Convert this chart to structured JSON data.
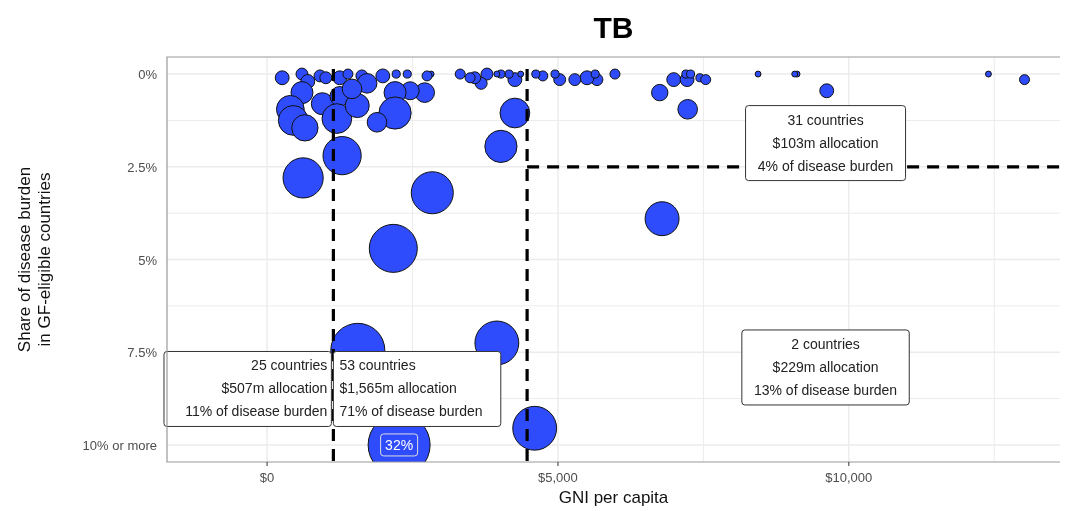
{
  "chart_data": {
    "type": "bubble",
    "title": "TB",
    "xlabel": "GNI per capita",
    "ylabel": "Share of disease burden\nin GF-eligible countries",
    "color": "#2e4cfb",
    "x": [
      2270,
      4600,
      1560,
      3950,
      2170,
      2840,
      620,
      1290,
      4020,
      4260,
      6790,
      7230,
      6750,
      9620,
      13020,
      12400,
      9110,
      9070,
      8440,
      6990,
      7220,
      7200,
      7280,
      7440,
      7540,
      5980,
      5670,
      5500,
      5290,
      5030,
      4740,
      4950,
      5640,
      4620,
      4260,
      4360,
      4160,
      4020,
      3950,
      3780,
      3680,
      3570,
      3490,
      3320,
      2820,
      2750,
      2710,
      2460,
      2200,
      1990,
      2220,
      2410,
      2200,
      1890,
      260,
      600,
      700,
      910,
      1010,
      1250,
      1390,
      1630,
      1720,
      600,
      950,
      1250,
      400,
      450,
      650,
      1200,
      1550,
      1460
    ],
    "values": [
      10,
      9.55,
      7.45,
      7.25,
      4.7,
      3.2,
      2.8,
      2.2,
      1.95,
      1.05,
      3.9,
      0.95,
      0.5,
      0.45,
      0.15,
      0,
      0,
      0,
      0,
      0.15,
      0.15,
      0,
      0,
      0.1,
      0.15,
      0,
      0.15,
      0.1,
      0.15,
      0.15,
      0.05,
      0,
      0,
      0,
      0.15,
      0,
      0,
      0,
      0,
      0,
      0.25,
      0.1,
      0.1,
      0,
      0,
      0.05,
      0.5,
      0.45,
      0.5,
      0.05,
      0,
      0,
      1.05,
      1.3,
      0.1,
      0,
      0.2,
      0.05,
      0.1,
      0.1,
      0,
      0.05,
      0.25,
      0.5,
      0.8,
      0.6,
      0.95,
      1.25,
      1.45,
      1.2,
      0.85,
      0.4
    ],
    "sizes": [
      1,
      0.5,
      0.76,
      0.5,
      0.6,
      0.46,
      0.42,
      0.38,
      0.27,
      0.23,
      0.3,
      0.1,
      0.07,
      0.05,
      0.026,
      0.009,
      0.009,
      0.009,
      0.009,
      0.05,
      0.05,
      0.017,
      0.017,
      0.017,
      0.026,
      0.026,
      0.037,
      0.05,
      0.037,
      0.037,
      0.026,
      0.017,
      0.017,
      0.017,
      0.05,
      0.009,
      0.017,
      0.017,
      0.009,
      0.037,
      0.037,
      0.037,
      0.026,
      0.026,
      0.009,
      0.026,
      0.1,
      0.084,
      0.126,
      0.05,
      0.017,
      0.017,
      0.27,
      0.1,
      0.05,
      0.037,
      0.05,
      0.037,
      0.037,
      0.05,
      0.026,
      0.037,
      0.1,
      0.126,
      0.126,
      0.1,
      0.2,
      0.23,
      0.18,
      0.23,
      0.15,
      0.1
    ],
    "xlim": [
      -1720,
      13630
    ],
    "ylim": [
      10.46,
      -0.46
    ],
    "xticks": [
      {
        "value": 0,
        "label": "$0"
      },
      {
        "value": 2500,
        "label": null
      },
      {
        "value": 5000,
        "label": "$5,000"
      },
      {
        "value": 7500,
        "label": null
      },
      {
        "value": 10000,
        "label": "$10,000"
      },
      {
        "value": 12500,
        "label": null
      }
    ],
    "yticks": [
      {
        "value": 0,
        "label": "0%"
      },
      {
        "value": 1.25,
        "label": null
      },
      {
        "value": 2.5,
        "label": "2.5%"
      },
      {
        "value": 3.75,
        "label": null
      },
      {
        "value": 5,
        "label": "5%"
      },
      {
        "value": 6.25,
        "label": null
      },
      {
        "value": 7.5,
        "label": "7.5%"
      },
      {
        "value": 8.75,
        "label": null
      },
      {
        "value": 10,
        "label": "10% or more"
      }
    ],
    "grid": true,
    "ref_lines": [
      {
        "axis": "x",
        "value": 1140,
        "line_style": "dashed"
      },
      {
        "axis": "x",
        "value": 4470,
        "line_style": "dashed"
      },
      {
        "axis": "y",
        "value": 2.5,
        "line_style": "dashed"
      }
    ],
    "annotations": [
      "25 countries\n$507m allocation\n11% of disease burden",
      "53 countries\n$1,565m allocation\n71% of disease burden",
      "31 countries\n$103m allocation\n4% of disease burden",
      "2 countries\n$229m allocation\n13% of disease burden",
      {
        "text": "32%",
        "x": 2270,
        "y": 10
      }
    ]
  }
}
